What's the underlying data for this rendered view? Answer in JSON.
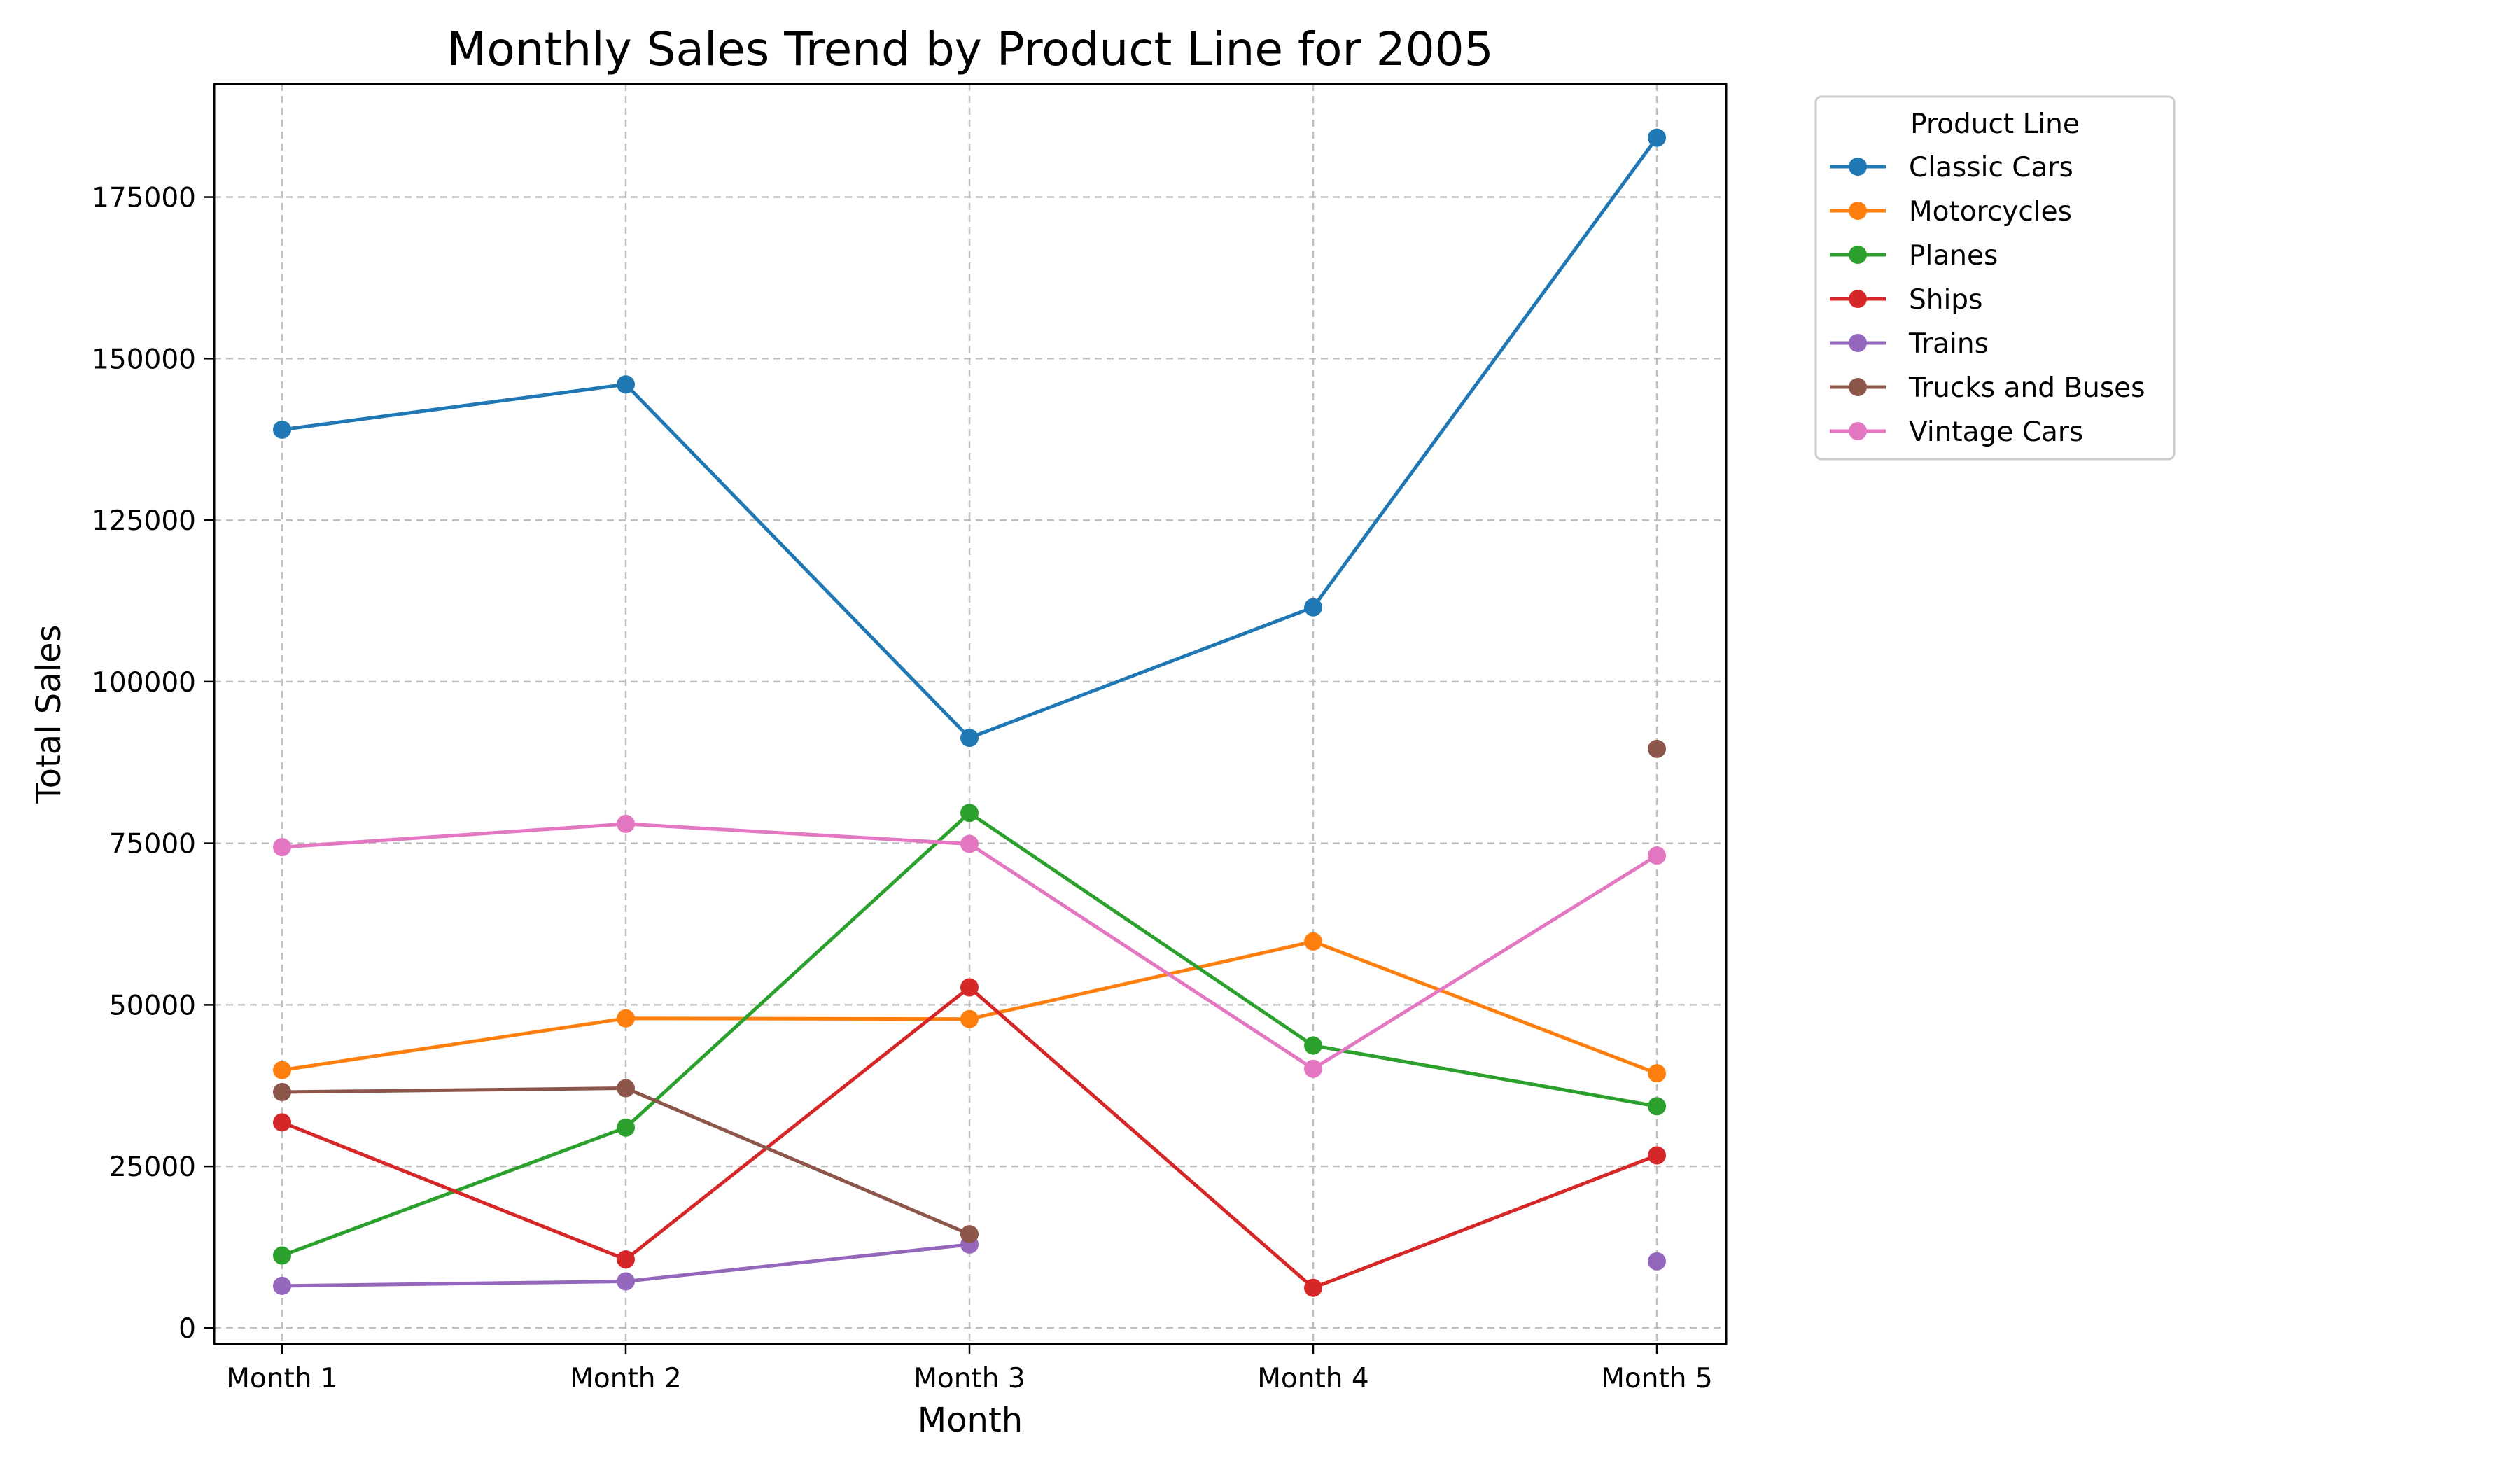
{
  "chart_data": {
    "type": "line",
    "title": "Monthly Sales Trend by Product Line for 2005",
    "xlabel": "Month",
    "ylabel": "Total Sales",
    "categories": [
      "Month 1",
      "Month 2",
      "Month 3",
      "Month 4",
      "Month 5"
    ],
    "ylim": [
      -2500,
      192500
    ],
    "yticks": [
      0,
      25000,
      50000,
      75000,
      100000,
      125000,
      150000,
      175000
    ],
    "ytick_labels": [
      "0",
      "25000",
      "50000",
      "75000",
      "100000",
      "125000",
      "150000",
      "175000"
    ],
    "grid": true,
    "legend": {
      "title": "Product Line",
      "placement": "outside-upper-right"
    },
    "series": [
      {
        "name": "Classic Cars",
        "color": "#1f77b4",
        "values": [
          139000,
          146000,
          91300,
          111500,
          184200
        ]
      },
      {
        "name": "Motorcycles",
        "color": "#ff7f0e",
        "values": [
          39900,
          47900,
          47800,
          59800,
          39400
        ]
      },
      {
        "name": "Planes",
        "color": "#2ca02c",
        "values": [
          11200,
          31000,
          79700,
          43700,
          34300
        ]
      },
      {
        "name": "Ships",
        "color": "#d62728",
        "values": [
          31800,
          10600,
          52700,
          6200,
          26700
        ]
      },
      {
        "name": "Trains",
        "color": "#9467bd",
        "values": [
          6500,
          7200,
          12900,
          null,
          10300
        ]
      },
      {
        "name": "Trucks and Buses",
        "color": "#8c564b",
        "values": [
          36500,
          37100,
          14500,
          null,
          89600
        ]
      },
      {
        "name": "Vintage Cars",
        "color": "#e377c2",
        "values": [
          74400,
          78000,
          74900,
          40100,
          73100
        ]
      }
    ]
  }
}
